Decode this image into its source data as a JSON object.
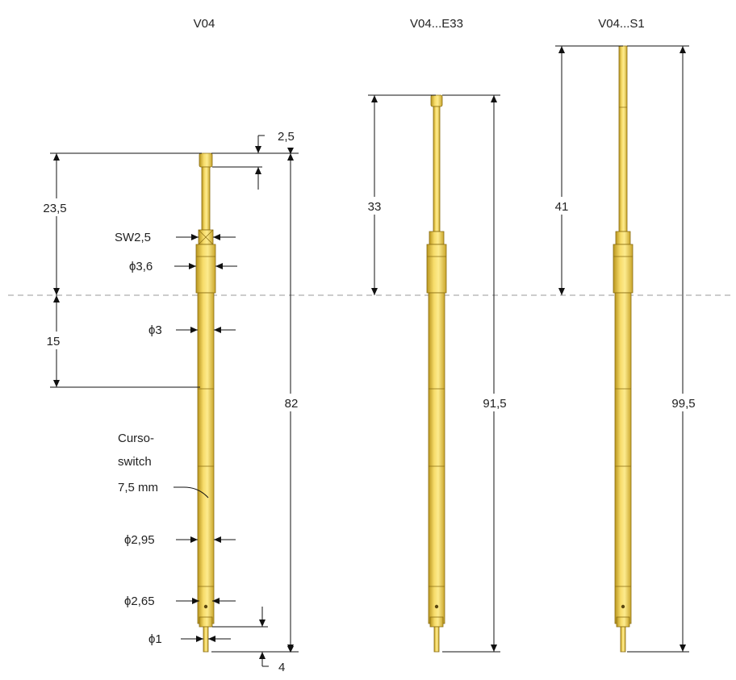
{
  "variants": [
    {
      "title": "V04",
      "length": "82",
      "upper": "23,5",
      "lower": "15",
      "head": "2,5",
      "tail": "4"
    },
    {
      "title": "V04...E33",
      "length": "91,5",
      "upper": "33"
    },
    {
      "title": "V04...S1",
      "length": "99,5",
      "upper": "41"
    }
  ],
  "callouts": {
    "sw": "SW2,5",
    "d36": "ϕ3,6",
    "d3": "ϕ3",
    "d295": "ϕ2,95",
    "d265": "ϕ2,65",
    "d1": "ϕ1",
    "stroke_line1": "Curso-",
    "stroke_line2": "switch",
    "stroke_line3": "7,5 mm"
  },
  "colors": {
    "gold": "#f2d25c",
    "gold_light": "#fbe88a",
    "gold_dark": "#a8861a",
    "line": "#111111",
    "centerline": "#aaaaaa"
  }
}
